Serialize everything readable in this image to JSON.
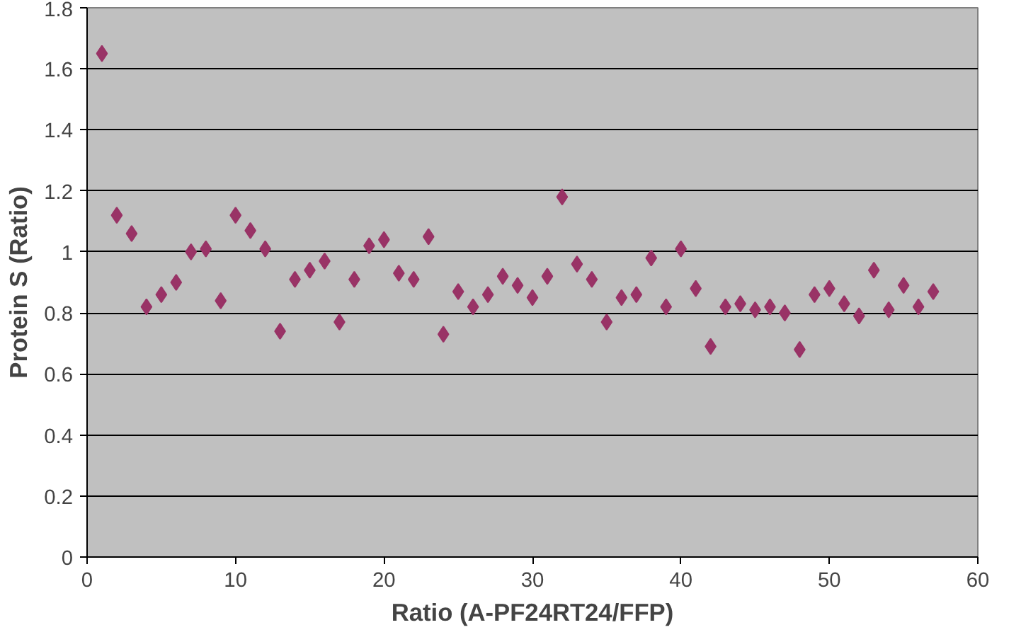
{
  "chart_data": {
    "type": "scatter",
    "xlabel": "Ratio (A-PF24RT24/FFP)",
    "ylabel": "Protein S (Ratio)",
    "x": [
      1,
      2,
      3,
      4,
      5,
      6,
      7,
      8,
      9,
      10,
      11,
      12,
      13,
      14,
      15,
      16,
      17,
      18,
      19,
      20,
      21,
      22,
      23,
      24,
      25,
      26,
      27,
      28,
      29,
      30,
      31,
      32,
      33,
      34,
      35,
      36,
      37,
      38,
      39,
      40,
      41,
      42,
      43,
      44,
      45,
      46,
      47,
      48,
      49,
      50,
      51,
      52,
      53,
      54,
      55,
      56,
      57
    ],
    "series": [
      {
        "color": "#993366",
        "values": [
          1.65,
          1.12,
          1.06,
          0.82,
          0.86,
          0.9,
          1.0,
          1.01,
          0.84,
          1.12,
          1.07,
          1.01,
          0.74,
          0.91,
          0.94,
          0.97,
          0.77,
          0.91,
          1.02,
          1.04,
          0.93,
          0.91,
          1.05,
          0.73,
          0.87,
          0.82,
          0.86,
          0.92,
          0.89,
          0.85,
          0.92,
          1.18,
          0.96,
          0.91,
          0.77,
          0.85,
          0.86,
          0.98,
          0.82,
          1.01,
          0.88,
          0.69,
          0.82,
          0.83,
          0.81,
          0.82,
          0.8,
          0.68,
          0.86,
          0.88,
          0.83,
          0.79,
          0.94,
          0.81,
          0.89,
          0.82,
          0.87
        ]
      }
    ],
    "xlim": [
      0,
      60
    ],
    "xticks": [
      0,
      10,
      20,
      30,
      40,
      50,
      60
    ],
    "ylim": [
      0,
      1.8
    ],
    "yticks": [
      0,
      {
        "value": 0.2,
        "label": "0.2"
      },
      {
        "value": 0.4,
        "label": "0.4"
      },
      {
        "value": 0.6,
        "label": "0.6"
      },
      {
        "value": 0.8,
        "label": "0.8"
      },
      1,
      {
        "value": 1.2,
        "label": "1.2"
      },
      {
        "value": 1.4,
        "label": "1.4"
      },
      {
        "value": 1.6,
        "label": "1.6"
      },
      {
        "value": 1.8,
        "label": "1.8"
      }
    ],
    "grid": "y",
    "marker": "diamond"
  }
}
